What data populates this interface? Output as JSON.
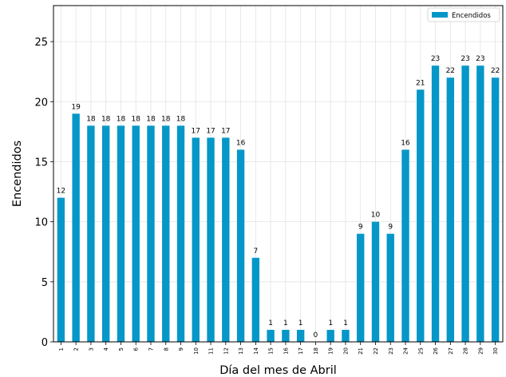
{
  "chart_data": {
    "type": "bar",
    "title": "",
    "xlabel": "Día del mes de Abril",
    "ylabel": "Encendidos",
    "ylim": [
      0,
      28
    ],
    "yticks": [
      0,
      5,
      10,
      15,
      20,
      25
    ],
    "grid": true,
    "legend_position": "top-right",
    "bar_color": "#0497c8",
    "categories": [
      "1",
      "2",
      "3",
      "4",
      "5",
      "6",
      "7",
      "8",
      "9",
      "10",
      "11",
      "12",
      "13",
      "14",
      "15",
      "16",
      "17",
      "18",
      "19",
      "20",
      "21",
      "22",
      "23",
      "24",
      "25",
      "26",
      "27",
      "28",
      "29",
      "30"
    ],
    "series": [
      {
        "name": "Encendidos",
        "values": [
          12,
          19,
          18,
          18,
          18,
          18,
          18,
          18,
          18,
          17,
          17,
          17,
          16,
          7,
          1,
          1,
          1,
          0,
          1,
          1,
          9,
          10,
          9,
          16,
          21,
          23,
          22,
          23,
          23,
          22
        ]
      }
    ]
  }
}
